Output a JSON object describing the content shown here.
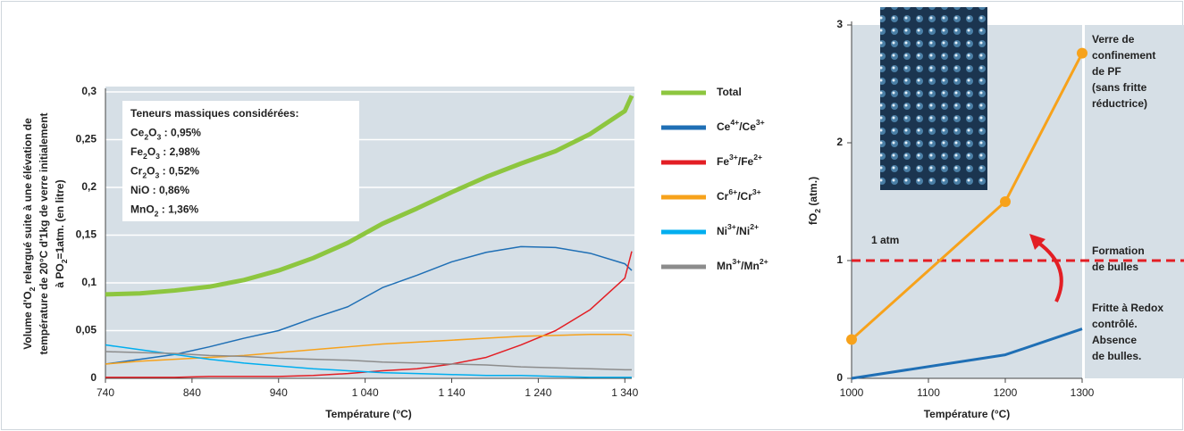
{
  "chart_data": [
    {
      "type": "line",
      "xlabel": "Température (°C)",
      "ylabel": [
        "Volume d'O2 relargué suite à une élévation de",
        "température de 20°C d'1kg de verre initialement",
        "à PO2=1atm. (en litre)"
      ],
      "annotation": [
        "Teneurs massiques considérées:",
        "Ce2O3 : 0,95%",
        "Fe2O3 : 2,98%",
        "Cr2O3 : 0,52%",
        "NiO : 0,86%",
        "MnO2 : 1,36%"
      ],
      "x": [
        740,
        780,
        820,
        860,
        900,
        940,
        980,
        1020,
        1060,
        1100,
        1140,
        1180,
        1220,
        1260,
        1300,
        1340,
        1348
      ],
      "xlim": [
        740,
        1348
      ],
      "xticks": [
        740,
        840,
        940,
        {
          "value": 1040,
          "label": "1 040"
        },
        {
          "value": 1140,
          "label": "1 140"
        },
        {
          "value": 1240,
          "label": "1 240"
        },
        {
          "value": 1340,
          "label": "1 340"
        }
      ],
      "ylim": [
        0,
        0.3
      ],
      "yticks": [
        0,
        {
          "value": 0.05,
          "label": "0,05"
        },
        {
          "value": 0.1,
          "label": "0,1"
        },
        {
          "value": 0.15,
          "label": "0,15"
        },
        {
          "value": 0.2,
          "label": "0,2"
        },
        {
          "value": 0.25,
          "label": "0,25"
        },
        {
          "value": 0.3,
          "label": "0,3"
        }
      ],
      "grid": true,
      "series": [
        {
          "name": "Total",
          "color": "#8dc63f",
          "width": 5,
          "values": [
            0.088,
            0.089,
            0.092,
            0.096,
            0.103,
            0.113,
            0.126,
            0.142,
            0.162,
            0.178,
            0.195,
            0.211,
            0.225,
            0.238,
            0.256,
            0.28,
            0.296
          ]
        },
        {
          "name": "Ce4+/Ce3+",
          "color": "#1f6fb5",
          "width": 1.5,
          "values": [
            0.015,
            0.02,
            0.025,
            0.033,
            0.042,
            0.05,
            0.063,
            0.075,
            0.095,
            0.108,
            0.122,
            0.132,
            0.138,
            0.137,
            0.131,
            0.12,
            0.113
          ]
        },
        {
          "name": "Fe3+/Fe2+",
          "color": "#e31e24",
          "width": 1.5,
          "values": [
            0.001,
            0.001,
            0.001,
            0.002,
            0.002,
            0.002,
            0.003,
            0.005,
            0.008,
            0.01,
            0.015,
            0.022,
            0.035,
            0.05,
            0.072,
            0.105,
            0.133
          ]
        },
        {
          "name": "Cr6+/Cr3+",
          "color": "#f7a21b",
          "width": 1.5,
          "values": [
            0.015,
            0.018,
            0.02,
            0.022,
            0.024,
            0.027,
            0.03,
            0.033,
            0.036,
            0.038,
            0.04,
            0.042,
            0.044,
            0.045,
            0.046,
            0.046,
            0.045
          ]
        },
        {
          "name": "Ni3+/Ni2+",
          "color": "#00aeef",
          "width": 1.5,
          "values": [
            0.035,
            0.03,
            0.025,
            0.02,
            0.016,
            0.013,
            0.01,
            0.008,
            0.006,
            0.005,
            0.004,
            0.003,
            0.003,
            0.002,
            0.001,
            0.001,
            0.001
          ]
        },
        {
          "name": "Mn3+/Mn2+",
          "color": "#8c8c8c",
          "width": 1.5,
          "values": [
            0.028,
            0.027,
            0.026,
            0.024,
            0.023,
            0.021,
            0.02,
            0.019,
            0.017,
            0.016,
            0.015,
            0.014,
            0.012,
            0.011,
            0.01,
            0.009,
            0.009
          ]
        }
      ]
    },
    {
      "type": "line",
      "xlabel": "Température (°C)",
      "ylabel": "fO2 (atm.)",
      "x": [
        1000,
        1200,
        1300
      ],
      "xlim": [
        1000,
        1300
      ],
      "xticks": [
        1000,
        1100,
        1200,
        1300
      ],
      "ylim": [
        0,
        3
      ],
      "yticks": [
        0,
        1,
        2,
        3
      ],
      "grid": false,
      "hline": {
        "value": 1,
        "label": "1 atm",
        "color": "#e31e24",
        "note": [
          "Formation",
          "de bulles"
        ]
      },
      "series": [
        {
          "name": [
            "Verre de",
            "confinement",
            "de PF",
            "(sans fritte",
            "réductrice)"
          ],
          "color": "#f7a21b",
          "width": 3,
          "markers": true,
          "values": [
            0.33,
            1.5,
            2.76
          ]
        },
        {
          "name": [
            "Fritte à Redox",
            "contrôlé.",
            "Absence",
            "de bulles."
          ],
          "color": "#1f6fb5",
          "width": 3,
          "values": [
            0,
            0.2,
            0.42
          ]
        }
      ]
    }
  ]
}
